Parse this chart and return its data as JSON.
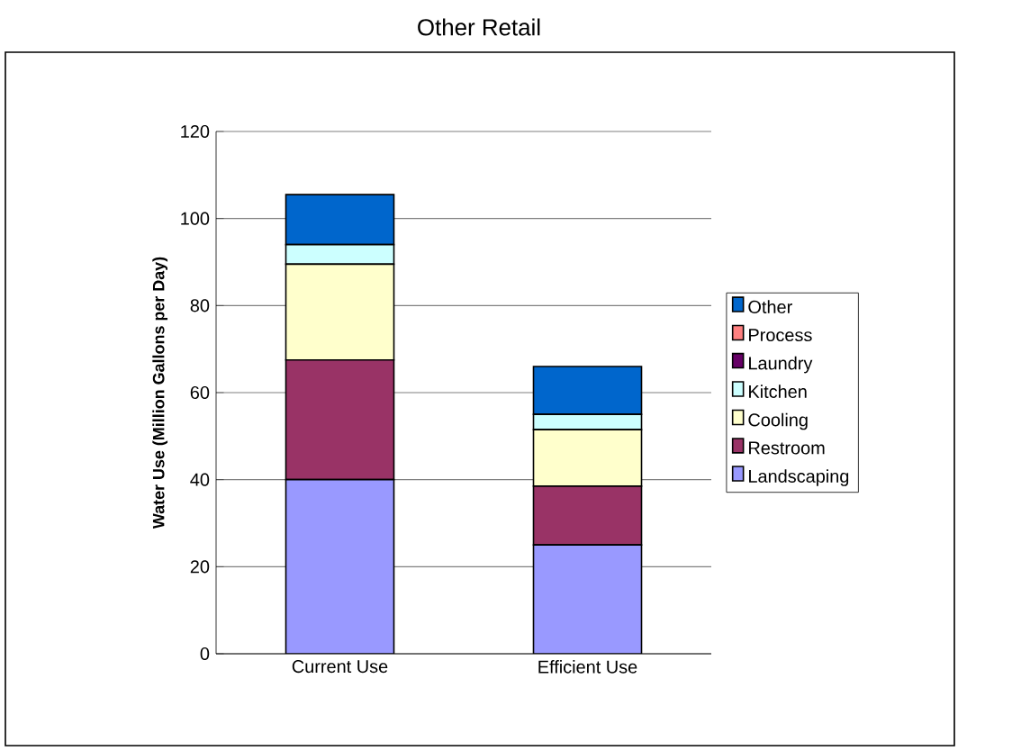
{
  "chart_data": {
    "type": "bar",
    "stacked": true,
    "title": "Other Retail",
    "ylabel": "Water Use (Million Gallons per Day)",
    "categories": [
      "Current Use",
      "Efficient Use"
    ],
    "series": [
      {
        "name": "Landscaping",
        "color": "#9999ff",
        "values": [
          40,
          25
        ]
      },
      {
        "name": "Restroom",
        "color": "#993366",
        "values": [
          27.5,
          13.5
        ]
      },
      {
        "name": "Cooling",
        "color": "#ffffcc",
        "values": [
          22,
          13
        ]
      },
      {
        "name": "Kitchen",
        "color": "#ccffff",
        "values": [
          4.5,
          3.5
        ]
      },
      {
        "name": "Laundry",
        "color": "#660066",
        "values": [
          0,
          0
        ]
      },
      {
        "name": "Process",
        "color": "#ff8080",
        "values": [
          0,
          0
        ]
      },
      {
        "name": "Other",
        "color": "#0066cc",
        "values": [
          11.5,
          11
        ]
      }
    ],
    "ylim": [
      0,
      120
    ],
    "yticks": [
      0,
      20,
      40,
      60,
      80,
      100,
      120
    ],
    "grid": "y",
    "legend": "right"
  }
}
